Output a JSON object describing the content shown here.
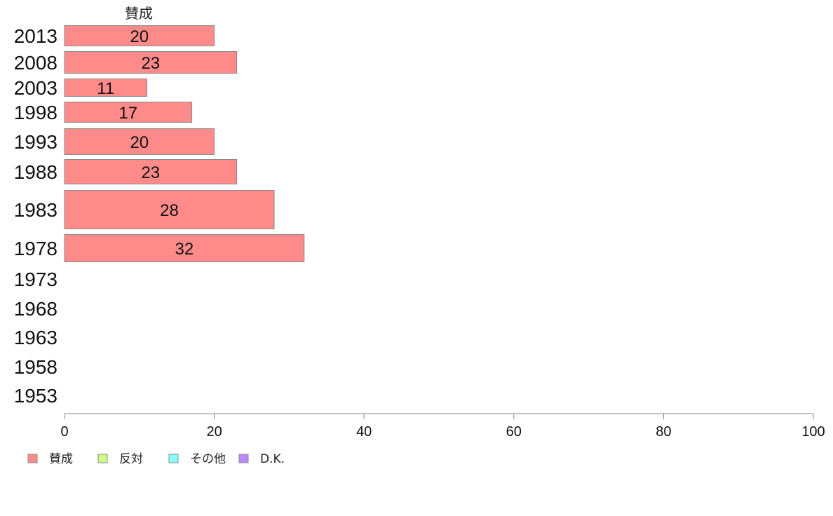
{
  "chart_data": {
    "type": "bar",
    "orientation": "horizontal",
    "column_header": "賛成",
    "categories": [
      "2013",
      "2008",
      "2003",
      "1998",
      "1993",
      "1988",
      "1983",
      "1978",
      "1973",
      "1968",
      "1963",
      "1958",
      "1953"
    ],
    "series": [
      {
        "name": "賛成",
        "color": "#ff8a8a",
        "values": [
          20,
          23,
          11,
          17,
          20,
          23,
          28,
          32,
          null,
          null,
          null,
          null,
          null
        ]
      }
    ],
    "data_labels": [
      "20",
      "23",
      "11",
      "17",
      "20",
      "23",
      "28",
      "32",
      "",
      "",
      "",
      "",
      ""
    ],
    "xlim": [
      0,
      100
    ],
    "x_ticks": [
      0,
      20,
      40,
      60,
      80,
      100
    ],
    "x_tick_labels": [
      "0",
      "20",
      "40",
      "60",
      "80",
      "100"
    ],
    "legend": {
      "placement": "bottom-left",
      "items": [
        {
          "label": "賛成",
          "color": "#ff8a8a"
        },
        {
          "label": "反対",
          "color": "#ccff88"
        },
        {
          "label": "その他",
          "color": "#88ffff"
        },
        {
          "label": "D.K.",
          "color": "#bb88ff"
        }
      ]
    },
    "grid": false
  }
}
